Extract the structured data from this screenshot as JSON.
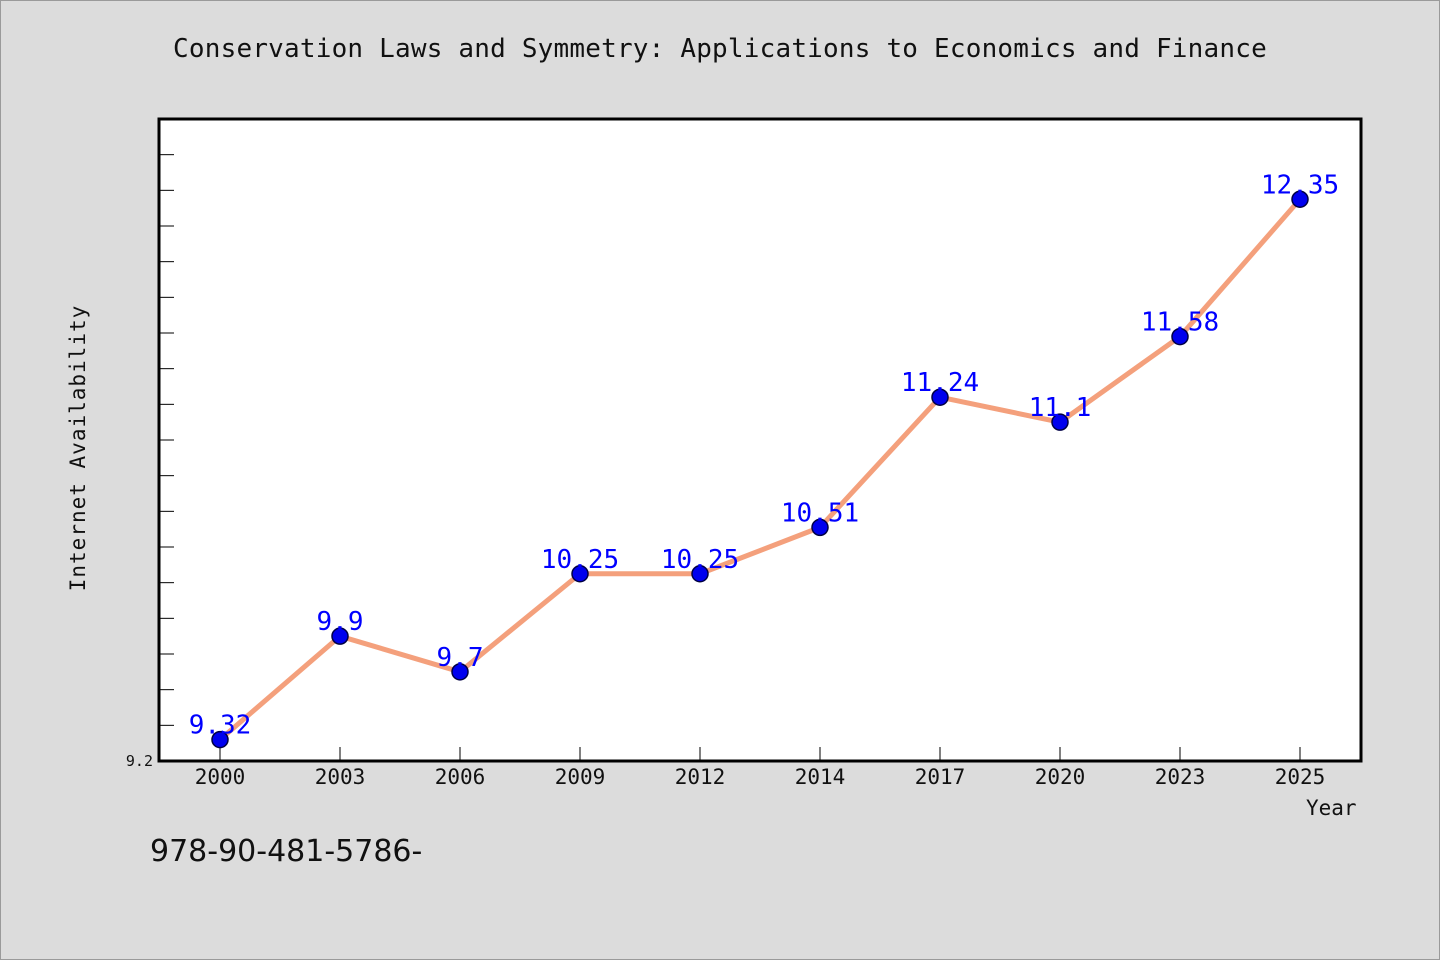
{
  "chart_data": {
    "type": "line",
    "title": "Conservation Laws and Symmetry: Applications to Economics and Finance",
    "xlabel": "Year",
    "ylabel": "Internet Availability",
    "categories": [
      "2000",
      "2003",
      "2006",
      "2009",
      "2012",
      "2014",
      "2017",
      "2020",
      "2023",
      "2025"
    ],
    "series": [
      {
        "values": [
          9.32,
          9.9,
          9.7,
          10.25,
          10.25,
          10.51,
          11.24,
          11.1,
          11.58,
          12.35
        ],
        "labels": [
          "9.32",
          "9.9",
          "9.7",
          "10.25",
          "10.25",
          "10.51",
          "11.24",
          "11.1",
          "11.58",
          "12.35"
        ]
      }
    ],
    "ylim": [
      9.2,
      12.8
    ],
    "ytick_labels": [
      "9.2"
    ],
    "grid": false,
    "line_color": "#f4a07c",
    "marker_color": "#0000ee",
    "label_color": "#0000ff"
  },
  "footer": {
    "code": "978-90-481-5786-"
  }
}
